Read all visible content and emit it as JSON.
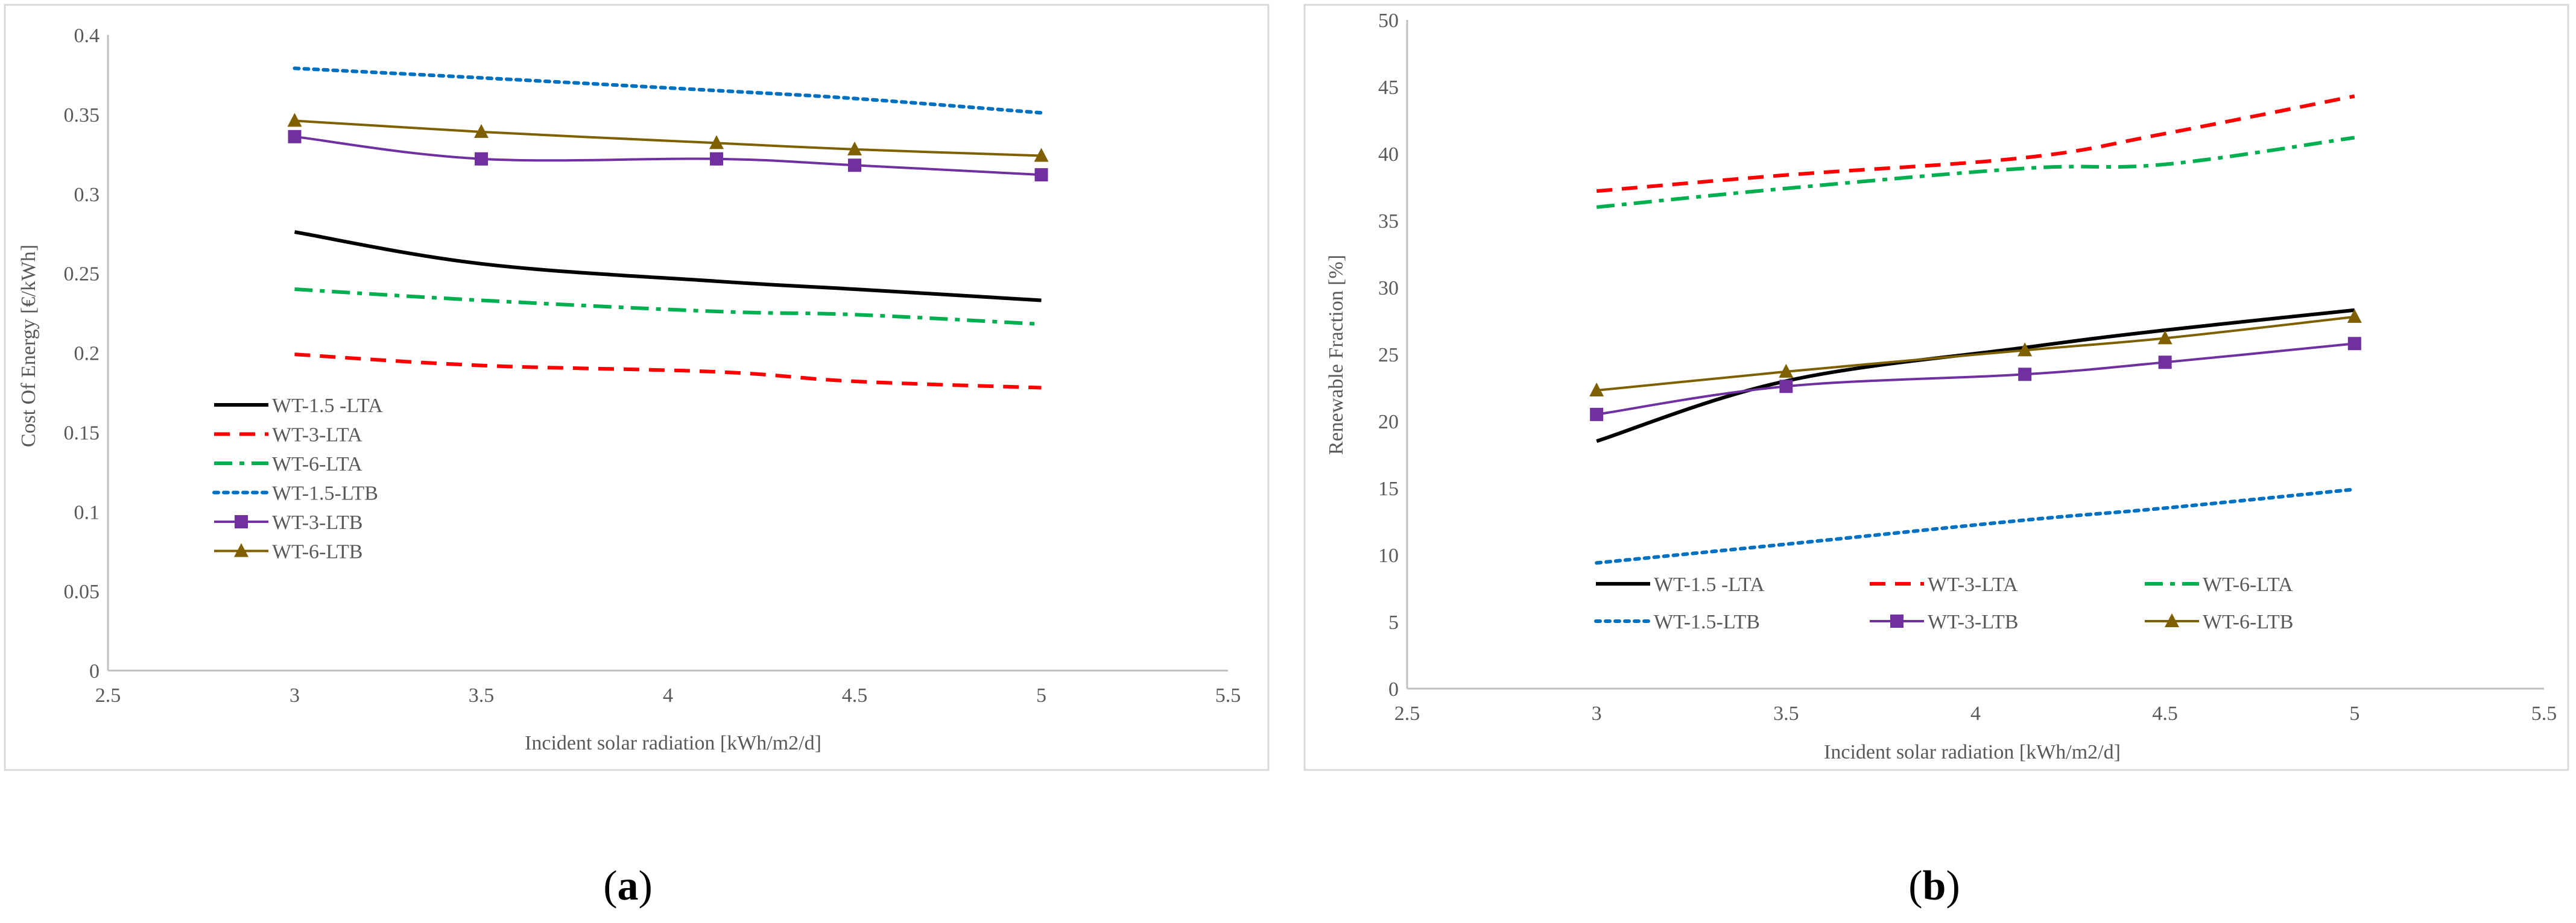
{
  "colors": {
    "WT-1.5 -LTA": "#000000",
    "WT-3-LTA": "#ff0000",
    "WT-6-LTA": "#00b050",
    "WT-1.5-LTB": "#0070c0",
    "WT-3-LTB": "#7030a0",
    "WT-6-LTB": "#7f6000"
  },
  "chart_data": [
    {
      "type": "line",
      "panel_label": "a",
      "title": "",
      "xlabel": "Incident solar radiation  [kWh/m2/d]",
      "ylabel": "Cost Of Energy  [€/kWh]",
      "xlim": [
        2.5,
        5.5
      ],
      "ylim": [
        0,
        0.4
      ],
      "x_ticks": [
        "2.5",
        "3",
        "3.5",
        "4",
        "4.5",
        "5",
        "5.5"
      ],
      "y_ticks": [
        "0",
        "0.05",
        "0.1",
        "0.15",
        "0.2",
        "0.25",
        "0.3",
        "0.35",
        "0.4"
      ],
      "legend_position": "left-middle",
      "series": [
        {
          "name": "WT-1.5 -LTA",
          "style": "solid",
          "marker": "none",
          "x": [
            3,
            3.5,
            4.13,
            4.5,
            5
          ],
          "values": [
            0.276,
            0.256,
            0.245,
            0.24,
            0.233
          ]
        },
        {
          "name": "WT-3-LTA",
          "style": "dashed",
          "marker": "none",
          "x": [
            3,
            3.5,
            4.13,
            4.5,
            5
          ],
          "values": [
            0.199,
            0.192,
            0.188,
            0.182,
            0.178
          ]
        },
        {
          "name": "WT-6-LTA",
          "style": "dashdot",
          "marker": "none",
          "x": [
            3,
            3.5,
            4.13,
            4.5,
            5
          ],
          "values": [
            0.24,
            0.233,
            0.226,
            0.224,
            0.218
          ]
        },
        {
          "name": "WT-1.5-LTB",
          "style": "dotted",
          "marker": "none",
          "x": [
            3,
            3.5,
            4.13,
            4.5,
            5
          ],
          "values": [
            0.379,
            0.373,
            0.365,
            0.36,
            0.351
          ]
        },
        {
          "name": "WT-3-LTB",
          "style": "solid",
          "marker": "square",
          "x": [
            3,
            3.5,
            4.13,
            4.5,
            5
          ],
          "values": [
            0.336,
            0.322,
            0.322,
            0.318,
            0.312
          ]
        },
        {
          "name": "WT-6-LTB",
          "style": "solid",
          "marker": "triangle",
          "x": [
            3,
            3.5,
            4.13,
            4.5,
            5
          ],
          "values": [
            0.346,
            0.339,
            0.332,
            0.328,
            0.324
          ]
        }
      ]
    },
    {
      "type": "line",
      "panel_label": "b",
      "title": "",
      "xlabel": "Incident solar radiation  [kWh/m2/d]",
      "ylabel": "Renewable  Fraction  [%]",
      "xlim": [
        2.5,
        5.5
      ],
      "ylim": [
        0,
        50
      ],
      "x_ticks": [
        "2.5",
        "3",
        "3.5",
        "4",
        "4.5",
        "5",
        "5.5"
      ],
      "y_ticks": [
        "0",
        "5",
        "10",
        "15",
        "20",
        "25",
        "30",
        "35",
        "40",
        "45",
        "50"
      ],
      "legend_position": "bottom",
      "series": [
        {
          "name": "WT-1.5 -LTA",
          "style": "solid",
          "marker": "none",
          "x": [
            3,
            3.5,
            4.13,
            4.5,
            5
          ],
          "values": [
            18.5,
            23,
            25.5,
            26.8,
            28.3
          ]
        },
        {
          "name": "WT-3-LTA",
          "style": "dashed",
          "marker": "none",
          "x": [
            3,
            3.5,
            4.13,
            4.5,
            5
          ],
          "values": [
            37.2,
            38.4,
            39.7,
            41.5,
            44.3
          ]
        },
        {
          "name": "WT-6-LTA",
          "style": "dashdot",
          "marker": "none",
          "x": [
            3,
            3.5,
            4.13,
            4.5,
            5
          ],
          "values": [
            36,
            37.4,
            38.9,
            39.2,
            41.2
          ]
        },
        {
          "name": "WT-1.5-LTB",
          "style": "dotted",
          "marker": "none",
          "x": [
            3,
            3.5,
            4.13,
            4.5,
            5
          ],
          "values": [
            9.4,
            10.8,
            12.6,
            13.5,
            14.9
          ]
        },
        {
          "name": "WT-3-LTB",
          "style": "solid",
          "marker": "square",
          "x": [
            3,
            3.5,
            4.13,
            4.5,
            5
          ],
          "values": [
            20.5,
            22.6,
            23.5,
            24.4,
            25.8
          ]
        },
        {
          "name": "WT-6-LTB",
          "style": "solid",
          "marker": "triangle",
          "x": [
            3,
            3.5,
            4.13,
            4.5,
            5
          ],
          "values": [
            22.3,
            23.7,
            25.3,
            26.2,
            27.8
          ]
        }
      ]
    }
  ]
}
